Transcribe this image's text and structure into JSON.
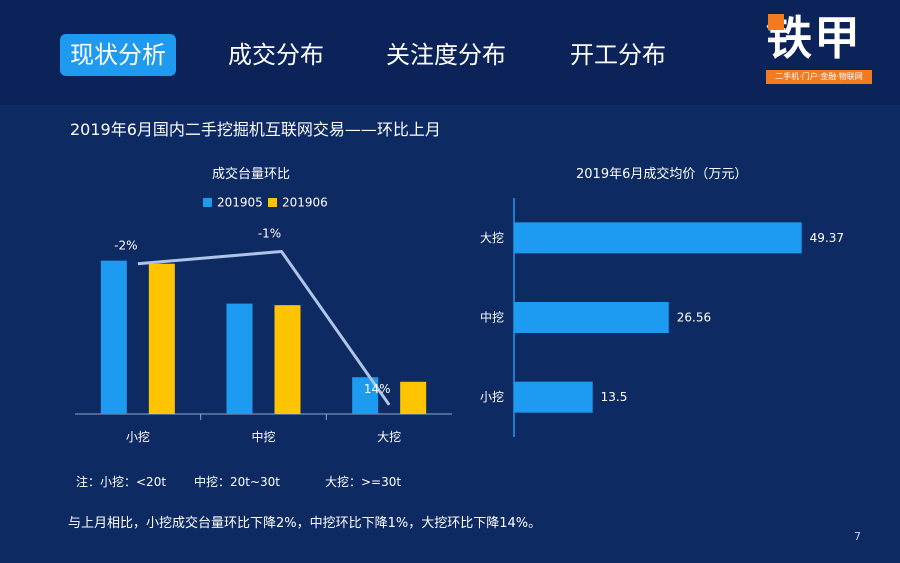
{
  "nav": {
    "tabs": [
      {
        "label": "现状分析",
        "active": true
      },
      {
        "label": "成交分布",
        "active": false
      },
      {
        "label": "关注度分布",
        "active": false
      },
      {
        "label": "开工分布",
        "active": false
      }
    ]
  },
  "logo": {
    "name": "铁甲",
    "tagline": "二手机·门户·金融·物联网"
  },
  "subtitle": "2019年6月国内二手挖掘机互联网交易——环比上月",
  "chart_data": [
    {
      "type": "bar",
      "title": "成交台量环比",
      "categories": [
        "小挖",
        "中挖",
        "大挖"
      ],
      "series": [
        {
          "name": "201905",
          "values": [
            100,
            72,
            24
          ]
        },
        {
          "name": "201906",
          "values": [
            98,
            71,
            21
          ]
        }
      ],
      "line": {
        "values": [
          "-2%",
          "-1%",
          "14%"
        ],
        "heights": [
          98,
          106,
          6
        ]
      },
      "ylim": [
        0,
        120
      ],
      "colors": [
        "#1c9bf0",
        "#ffc400",
        "#aec4e8"
      ],
      "legend": "top"
    },
    {
      "type": "bar",
      "orientation": "horizontal",
      "title": "2019年6月成交均价（万元）",
      "categories": [
        "大挖",
        "中挖",
        "小挖"
      ],
      "values": [
        49.37,
        26.56,
        13.5
      ],
      "xlim": [
        0,
        52
      ],
      "colors": [
        "#1c9bf0"
      ]
    }
  ],
  "note": {
    "small": "注：小挖：<20t",
    "medium": "中挖：20t~30t",
    "large": "大挖：>=30t"
  },
  "summary": "与上月相比，小挖成交台量环比下降2%，中挖环比下降1%，大挖环比下降14%。",
  "page_number": "7"
}
